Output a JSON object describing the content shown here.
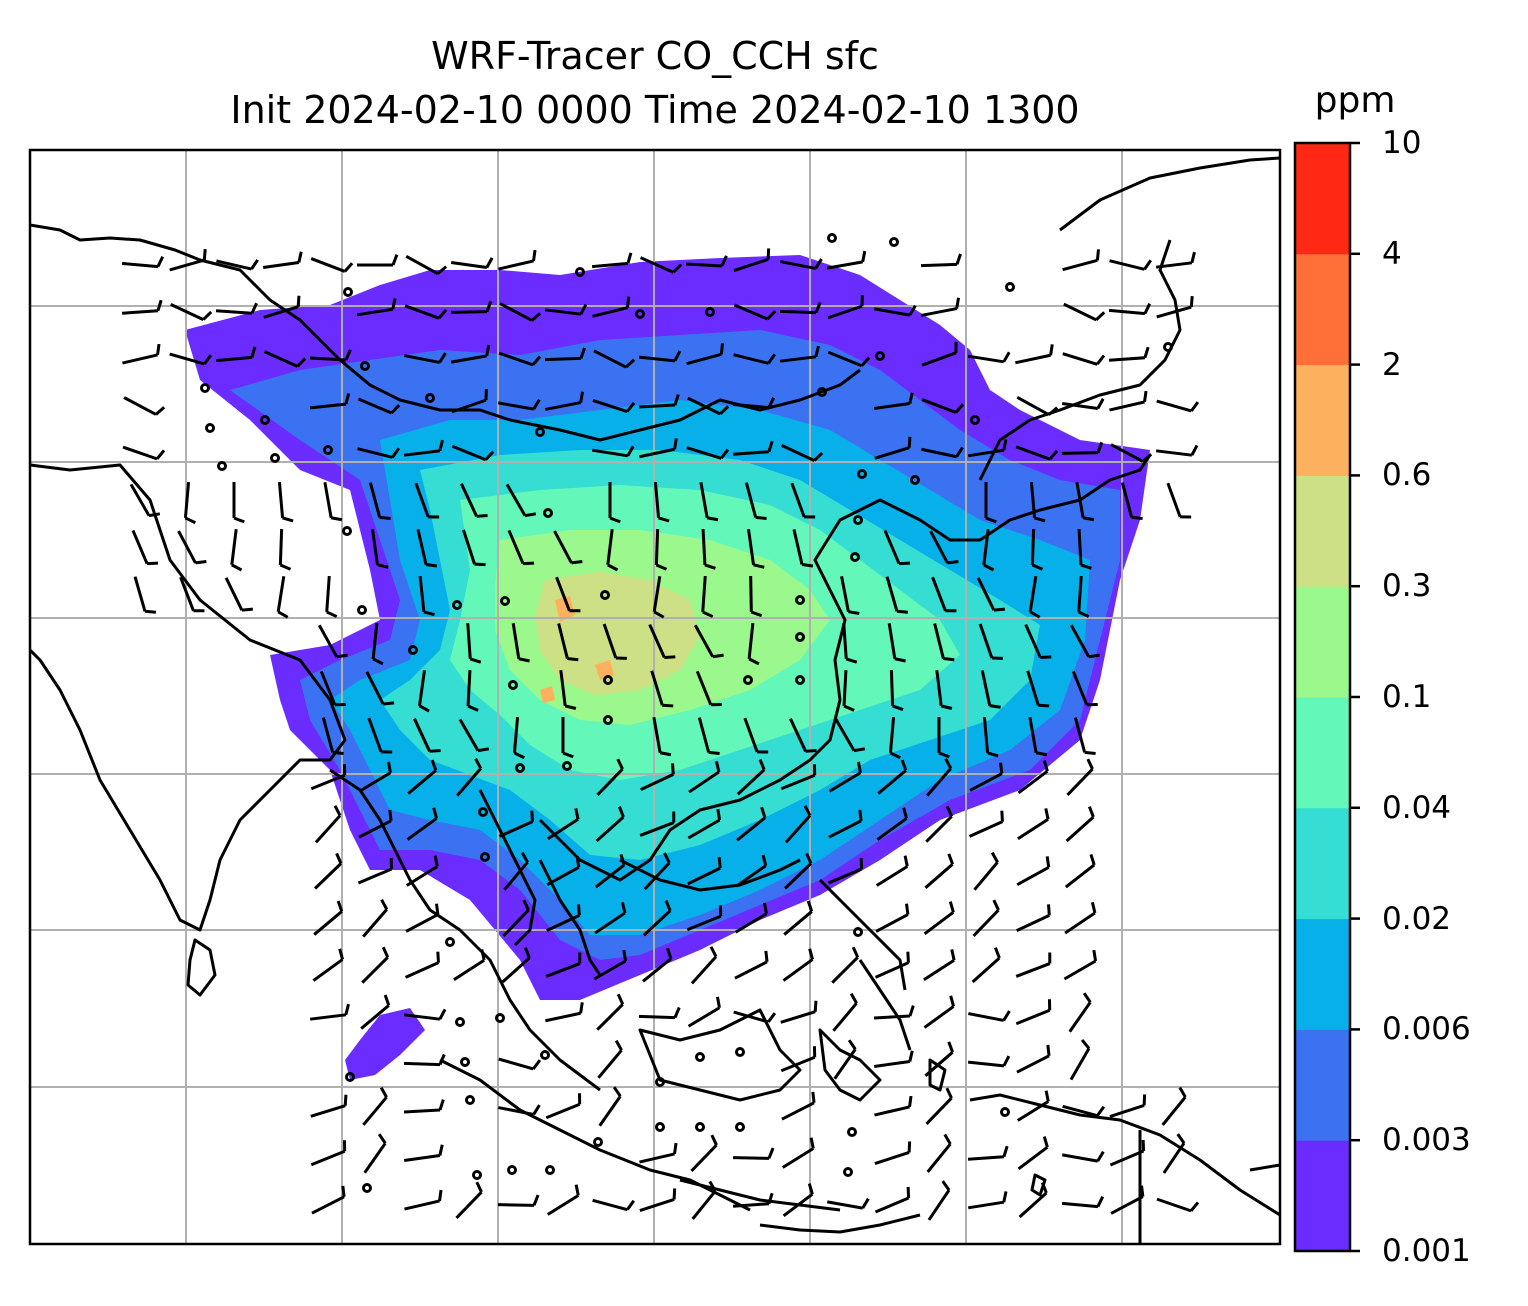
{
  "title": {
    "line1": "WRF-Tracer CO_CCH sfc",
    "line2": "Init 2024-02-10 0000 Time 2024-02-10 1300"
  },
  "colorbar": {
    "unit": "ppm",
    "levels": [
      "0.001",
      "0.003",
      "0.006",
      "0.02",
      "0.04",
      "0.1",
      "0.3",
      "0.6",
      "2",
      "4",
      "10"
    ],
    "colors": [
      "#6a2cff",
      "#3b72f2",
      "#08b0ea",
      "#35ddd2",
      "#63f7b9",
      "#9bf88d",
      "#cee085",
      "#fdb15f",
      "#ff7038",
      "#ff2815"
    ]
  },
  "map": {
    "grid": "on",
    "wind_barbs": "on",
    "coastlines": "on"
  }
}
